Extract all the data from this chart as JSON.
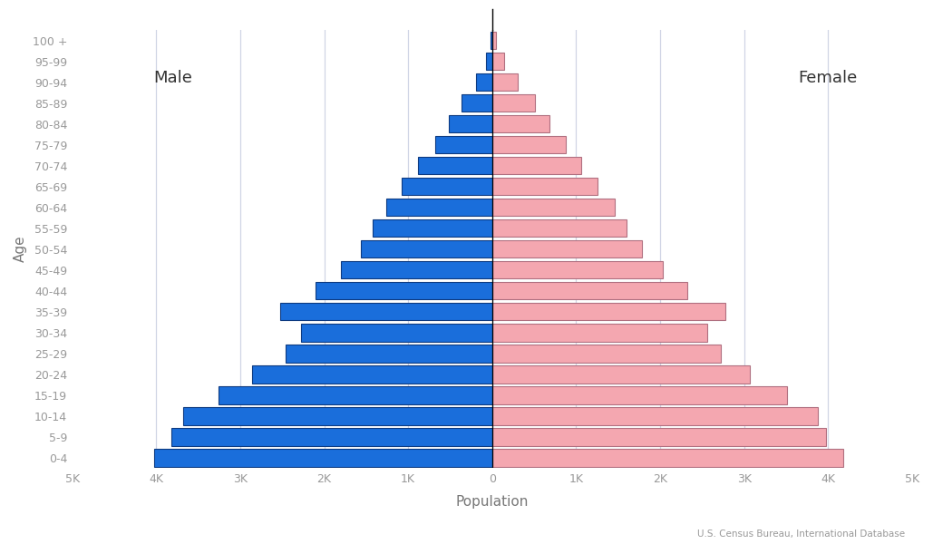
{
  "xlabel": "Population",
  "ylabel": "Age",
  "source": "U.S. Census Bureau, International Database",
  "male_label": "Male",
  "female_label": "Female",
  "age_groups": [
    "100 +",
    "95-99",
    "90-94",
    "85-89",
    "80-84",
    "75-79",
    "70-74",
    "65-69",
    "60-64",
    "55-59",
    "50-54",
    "45-49",
    "40-44",
    "35-39",
    "30-34",
    "25-29",
    "20-24",
    "15-19",
    "10-14",
    "5-9",
    "0-4"
  ],
  "male_values": [
    18,
    75,
    190,
    360,
    520,
    680,
    880,
    1080,
    1260,
    1420,
    1560,
    1800,
    2100,
    2520,
    2280,
    2460,
    2860,
    3260,
    3680,
    3820,
    4020
  ],
  "female_values": [
    48,
    145,
    310,
    510,
    680,
    880,
    1060,
    1260,
    1460,
    1600,
    1780,
    2030,
    2320,
    2780,
    2560,
    2720,
    3070,
    3510,
    3880,
    3980,
    4180
  ],
  "male_color": "#1a6edb",
  "female_color": "#f4a7b0",
  "male_edge_color": "#0d3a80",
  "female_edge_color": "#b07080",
  "background_color": "#ffffff",
  "grid_color": "#d0d5e5",
  "text_color": "#999999",
  "axis_label_color": "#777777",
  "xlim": 5000,
  "xtick_raw": [
    -5000,
    -4000,
    -3000,
    -2000,
    -1000,
    0,
    1000,
    2000,
    3000,
    4000,
    5000
  ],
  "xtick_labels": [
    "5K",
    "4K",
    "3K",
    "2K",
    "1K",
    "0",
    "1K",
    "2K",
    "3K",
    "4K",
    "5K"
  ],
  "bar_height": 0.85,
  "grid_xvals": [
    -4000,
    -3000,
    -2000,
    -1000,
    0,
    1000,
    2000,
    3000,
    4000
  ]
}
